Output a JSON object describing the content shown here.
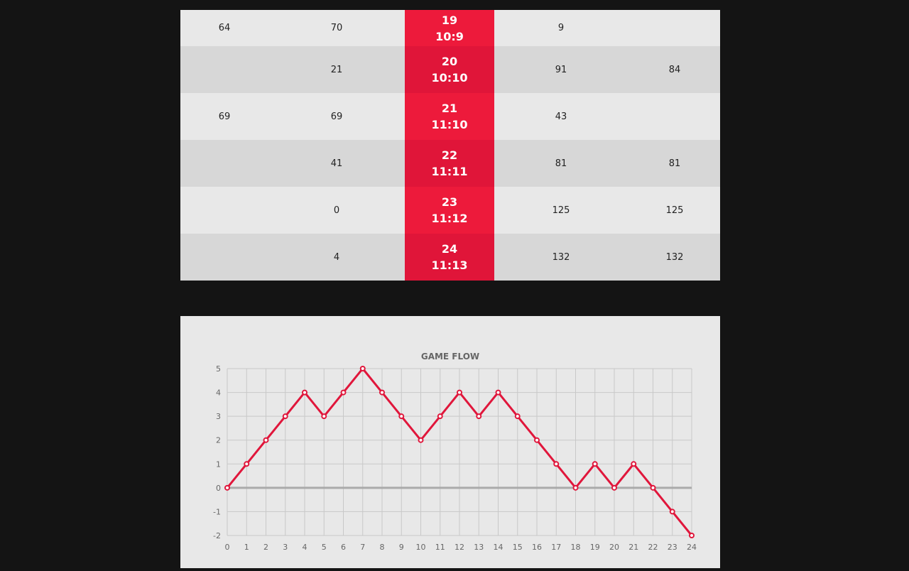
{
  "table": {
    "rows": [
      {
        "c1": "64",
        "c2": "70",
        "num": "19",
        "score": "10:9",
        "c4": "9",
        "c5": ""
      },
      {
        "c1": "",
        "c2": "21",
        "num": "20",
        "score": "10:10",
        "c4": "91",
        "c5": "84"
      },
      {
        "c1": "69",
        "c2": "69",
        "num": "21",
        "score": "11:10",
        "c4": "43",
        "c5": ""
      },
      {
        "c1": "",
        "c2": "41",
        "num": "22",
        "score": "11:11",
        "c4": "81",
        "c5": "81"
      },
      {
        "c1": "",
        "c2": "0",
        "num": "23",
        "score": "11:12",
        "c4": "125",
        "c5": "125"
      },
      {
        "c1": "",
        "c2": "4",
        "num": "24",
        "score": "11:13",
        "c4": "132",
        "c5": "132"
      }
    ]
  },
  "colors": {
    "accent": "#e0163b",
    "grid": "#c8c8c8",
    "zero_line": "#aaaaaa"
  },
  "chart_data": {
    "type": "line",
    "title": "GAME FLOW",
    "x": [
      0,
      1,
      2,
      3,
      4,
      5,
      6,
      7,
      8,
      9,
      10,
      11,
      12,
      13,
      14,
      15,
      16,
      17,
      18,
      19,
      20,
      21,
      22,
      23,
      24
    ],
    "values": [
      0,
      1,
      2,
      3,
      4,
      3,
      4,
      5,
      4,
      3,
      2,
      3,
      4,
      3,
      4,
      3,
      2,
      1,
      0,
      1,
      0,
      1,
      0,
      -1,
      -2
    ],
    "xlim": [
      0,
      24
    ],
    "ylim": [
      -2,
      5
    ],
    "grid": true
  }
}
